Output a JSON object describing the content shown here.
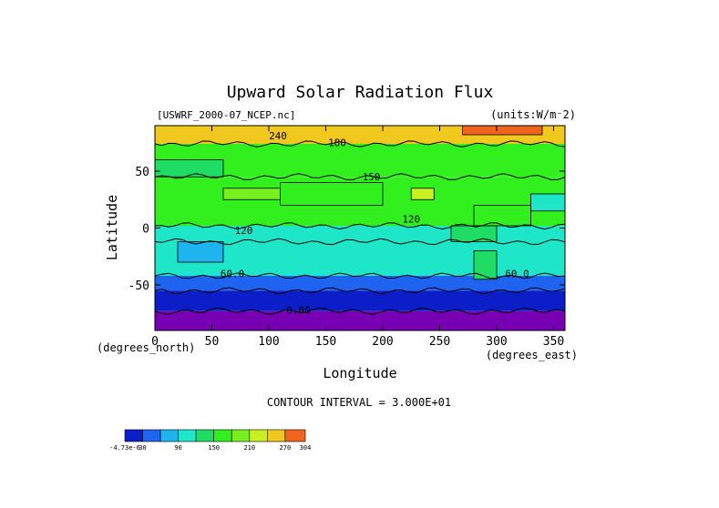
{
  "chart_data": {
    "type": "heatmap",
    "title": "Upward Solar Radiation Flux",
    "subtitle_left": "[USWRF_2000-07_NCEP.nc]",
    "units_label": "(units:W/m⁻2)",
    "xlabel": "Longitude",
    "ylabel": "Latitude",
    "x_unit_label": "(degrees_east)",
    "y_unit_label": "(degrees_north)",
    "xlim": [
      0,
      360
    ],
    "ylim": [
      -90,
      90
    ],
    "x_ticks": [
      0,
      50,
      100,
      150,
      200,
      250,
      300,
      350
    ],
    "y_ticks": [
      -50,
      0,
      50
    ],
    "contour_interval_text": "CONTOUR INTERVAL = 3.000E+01",
    "contour_labels": [
      {
        "text": "240",
        "lon": 108,
        "lat": 78
      },
      {
        "text": "180",
        "lon": 160,
        "lat": 72
      },
      {
        "text": "150",
        "lon": 190,
        "lat": 42
      },
      {
        "text": "120",
        "lon": 225,
        "lat": 5
      },
      {
        "text": "120",
        "lon": 78,
        "lat": -5
      },
      {
        "text": "60.0",
        "lon": 68,
        "lat": -43
      },
      {
        "text": "60.0",
        "lon": 318,
        "lat": -43
      },
      {
        "text": "0.00",
        "lon": 126,
        "lat": -75
      }
    ],
    "latitude_bands": [
      {
        "lat_min": 74,
        "lat_max": 90,
        "value": 255
      },
      {
        "lat_min": 45,
        "lat_max": 74,
        "value": 165
      },
      {
        "lat_min": 2,
        "lat_max": 45,
        "value": 150
      },
      {
        "lat_min": -12,
        "lat_max": 2,
        "value": 105
      },
      {
        "lat_min": -42,
        "lat_max": -12,
        "value": 90
      },
      {
        "lat_min": -55,
        "lat_max": -42,
        "value": 45
      },
      {
        "lat_min": -73,
        "lat_max": -55,
        "value": 15
      },
      {
        "lat_min": -90,
        "lat_max": -73,
        "value": -5
      }
    ],
    "patches": [
      {
        "lon_min": 270,
        "lon_max": 340,
        "lat_min": 82,
        "lat_max": 90,
        "value": 285
      },
      {
        "lon_min": 0,
        "lon_max": 60,
        "lat_min": 45,
        "lat_max": 60,
        "value": 135
      },
      {
        "lon_min": 60,
        "lon_max": 110,
        "lat_min": 25,
        "lat_max": 35,
        "value": 195
      },
      {
        "lon_min": 225,
        "lon_max": 245,
        "lat_min": 25,
        "lat_max": 35,
        "value": 225
      },
      {
        "lon_min": 110,
        "lon_max": 200,
        "lat_min": 20,
        "lat_max": 40,
        "value": 165
      },
      {
        "lon_min": 280,
        "lon_max": 330,
        "lat_min": 2,
        "lat_max": 20,
        "value": 165
      },
      {
        "lon_min": 260,
        "lon_max": 300,
        "lat_min": -12,
        "lat_max": 2,
        "value": 135
      },
      {
        "lon_min": 20,
        "lon_max": 60,
        "lat_min": -30,
        "lat_max": -12,
        "value": 75
      },
      {
        "lon_min": 280,
        "lon_max": 300,
        "lat_min": -45,
        "lat_max": -20,
        "value": 120
      },
      {
        "lon_min": 330,
        "lon_max": 360,
        "lat_min": 15,
        "lat_max": 30,
        "value": 105
      }
    ],
    "colorbar": {
      "levels": [
        -4.73e-06,
        30,
        60,
        90,
        120,
        150,
        180,
        210,
        240,
        270,
        304
      ],
      "labels": [
        "-4.73e-6",
        "30",
        "90",
        "150",
        "210",
        "270",
        "304"
      ],
      "label_values": [
        -4.73e-06,
        30,
        90,
        150,
        210,
        270,
        304
      ],
      "colors": [
        "#0c1ec8",
        "#1e64f0",
        "#1eb4f0",
        "#1ee6c8",
        "#1edc64",
        "#32f01e",
        "#78f01e",
        "#c8f01e",
        "#f0c81e",
        "#f0641e",
        "#f01e3c"
      ]
    },
    "colors": {
      "below_range": "#7800b4",
      "above_range": "#f01e3c",
      "contour_line": "#000000"
    }
  }
}
